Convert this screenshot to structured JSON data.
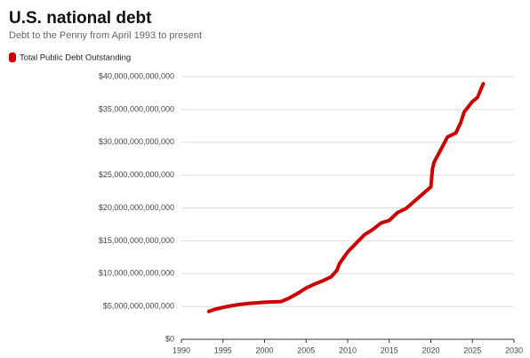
{
  "chart_data": {
    "type": "line",
    "title": "U.S. national debt",
    "subtitle": "Debt to the Penny from April 1993 to present",
    "x": [
      1993.3,
      1994,
      1995,
      1996,
      1997,
      1998,
      1999,
      2000,
      2001,
      2002,
      2003,
      2004,
      2005,
      2006,
      2007,
      2008,
      2008.7,
      2009,
      2010,
      2011,
      2012,
      2013,
      2014,
      2015,
      2016,
      2017,
      2018,
      2019,
      2020,
      2020.2,
      2020.4,
      2021,
      2022,
      2023,
      2023.6,
      2024,
      2025,
      2025.6,
      2026.3
    ],
    "series": [
      {
        "name": "Total Public Debt Outstanding",
        "color": "#cc0000",
        "values": [
          4230000000000,
          4560000000000,
          4850000000000,
          5100000000000,
          5300000000000,
          5450000000000,
          5550000000000,
          5650000000000,
          5700000000000,
          5750000000000,
          6300000000000,
          7000000000000,
          7800000000000,
          8400000000000,
          8900000000000,
          9500000000000,
          10500000000000,
          11500000000000,
          13300000000000,
          14600000000000,
          15900000000000,
          16700000000000,
          17700000000000,
          18100000000000,
          19300000000000,
          19900000000000,
          21000000000000,
          22100000000000,
          23200000000000,
          26000000000000,
          27000000000000,
          28400000000000,
          30800000000000,
          31400000000000,
          33000000000000,
          34600000000000,
          36200000000000,
          36800000000000,
          38900000000000
        ]
      }
    ],
    "xlim": [
      1990,
      2030
    ],
    "xticks": [
      1990,
      1995,
      2000,
      2005,
      2010,
      2015,
      2020,
      2025,
      2030
    ],
    "ylim": [
      0,
      40000000000000
    ],
    "yticks": [
      {
        "value": 0,
        "label": "$0"
      },
      {
        "value": 5000000000000,
        "label": "$5,000,000,000,000"
      },
      {
        "value": 10000000000000,
        "label": "$10,000,000,000,000"
      },
      {
        "value": 15000000000000,
        "label": "$15,000,000,000,000"
      },
      {
        "value": 20000000000000,
        "label": "$20,000,000,000,000"
      },
      {
        "value": 25000000000000,
        "label": "$25,000,000,000,000"
      },
      {
        "value": 30000000000000,
        "label": "$30,000,000,000,000"
      },
      {
        "value": 35000000000000,
        "label": "$35,000,000,000,000"
      },
      {
        "value": 40000000000000,
        "label": "$40,000,000,000,000"
      }
    ],
    "grid": true
  }
}
